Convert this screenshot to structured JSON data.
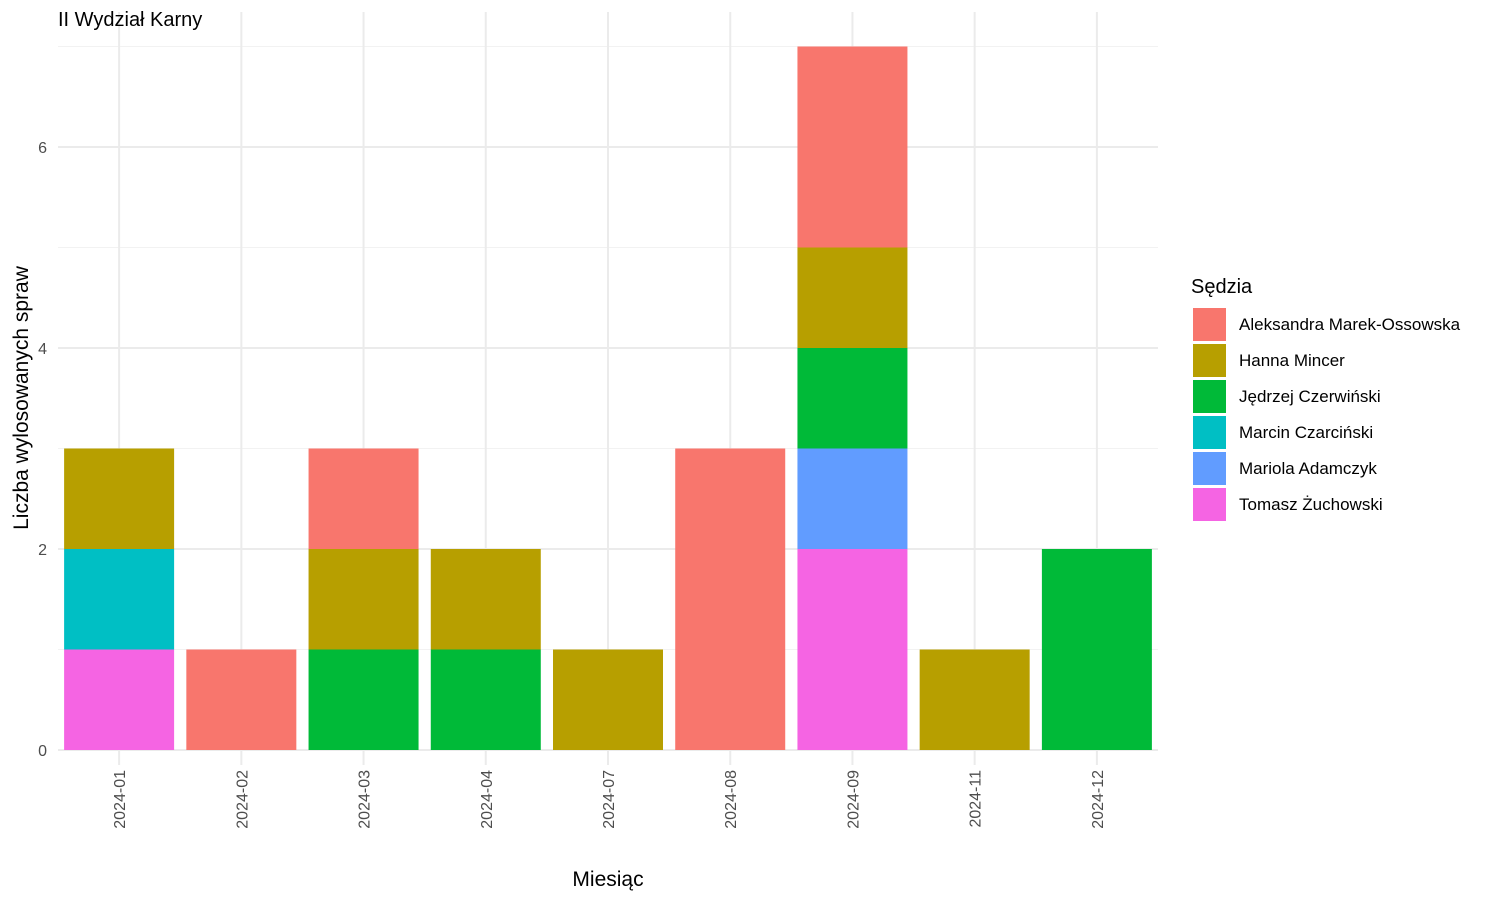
{
  "chart_data": {
    "type": "bar",
    "stacked": true,
    "title": "II Wydział Karny",
    "xlabel": "Miesiąc",
    "ylabel": "Liczba wylosowanych spraw",
    "ylim": [
      -0.2,
      7.3
    ],
    "yticks": [
      0,
      2,
      4,
      6
    ],
    "grid": true,
    "legend": {
      "title": "Sędzia",
      "position": "right"
    },
    "categories": [
      "2024-01",
      "2024-02",
      "2024-03",
      "2024-04",
      "2024-07",
      "2024-08",
      "2024-09",
      "2024-11",
      "2024-12"
    ],
    "series": [
      {
        "name": "Aleksandra Marek-Ossowska",
        "color": "#F8766D",
        "values": [
          0,
          1,
          1,
          0,
          0,
          3,
          2,
          0,
          0
        ]
      },
      {
        "name": "Hanna Mincer",
        "color": "#B79F00",
        "values": [
          1,
          0,
          1,
          1,
          1,
          0,
          1,
          1,
          0
        ]
      },
      {
        "name": "Jędrzej Czerwiński",
        "color": "#00BA38",
        "values": [
          0,
          0,
          1,
          1,
          0,
          0,
          1,
          0,
          2
        ]
      },
      {
        "name": "Marcin Czarciński",
        "color": "#00BFC4",
        "values": [
          1,
          0,
          0,
          0,
          0,
          0,
          0,
          0,
          0
        ]
      },
      {
        "name": "Mariola Adamczyk",
        "color": "#619CFF",
        "values": [
          0,
          0,
          0,
          0,
          0,
          0,
          1,
          0,
          0
        ]
      },
      {
        "name": "Tomasz Żuchowski",
        "color": "#F564E3",
        "values": [
          1,
          0,
          0,
          0,
          0,
          0,
          2,
          0,
          0
        ]
      }
    ]
  }
}
